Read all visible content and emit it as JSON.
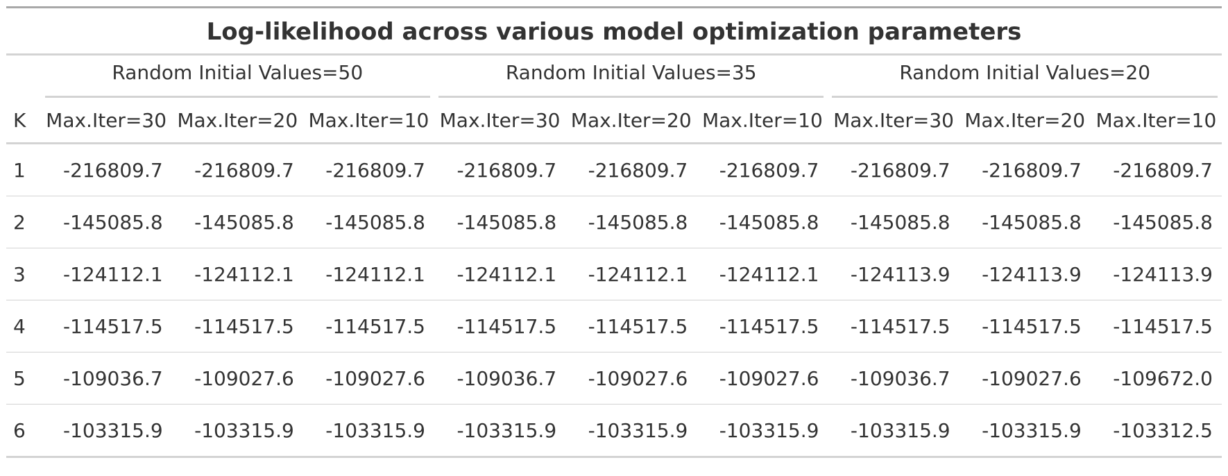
{
  "table": {
    "title": "Log-likelihood across various model optimization parameters",
    "k_header": "K",
    "spanners": [
      "Random Initial Values=50",
      "Random Initial Values=35",
      "Random Initial Values=20"
    ],
    "column_headers": [
      "Max.Iter=30",
      "Max.Iter=20",
      "Max.Iter=10",
      "Max.Iter=30",
      "Max.Iter=20",
      "Max.Iter=10",
      "Max.Iter=30",
      "Max.Iter=20",
      "Max.Iter=10"
    ],
    "rows": [
      {
        "k": "1",
        "values": [
          "-216809.7",
          "-216809.7",
          "-216809.7",
          "-216809.7",
          "-216809.7",
          "-216809.7",
          "-216809.7",
          "-216809.7",
          "-216809.7"
        ]
      },
      {
        "k": "2",
        "values": [
          "-145085.8",
          "-145085.8",
          "-145085.8",
          "-145085.8",
          "-145085.8",
          "-145085.8",
          "-145085.8",
          "-145085.8",
          "-145085.8"
        ]
      },
      {
        "k": "3",
        "values": [
          "-124112.1",
          "-124112.1",
          "-124112.1",
          "-124112.1",
          "-124112.1",
          "-124112.1",
          "-124113.9",
          "-124113.9",
          "-124113.9"
        ]
      },
      {
        "k": "4",
        "values": [
          "-114517.5",
          "-114517.5",
          "-114517.5",
          "-114517.5",
          "-114517.5",
          "-114517.5",
          "-114517.5",
          "-114517.5",
          "-114517.5"
        ]
      },
      {
        "k": "5",
        "values": [
          "-109036.7",
          "-109027.6",
          "-109027.6",
          "-109036.7",
          "-109027.6",
          "-109027.6",
          "-109036.7",
          "-109027.6",
          "-109672.0"
        ]
      },
      {
        "k": "6",
        "values": [
          "-103315.9",
          "-103315.9",
          "-103315.9",
          "-103315.9",
          "-103315.9",
          "-103315.9",
          "-103315.9",
          "-103315.9",
          "-103312.5"
        ]
      }
    ]
  },
  "colors": {
    "text": "#333333",
    "rule_strong": "#a8a8a8",
    "rule_light": "#d3d3d3"
  }
}
